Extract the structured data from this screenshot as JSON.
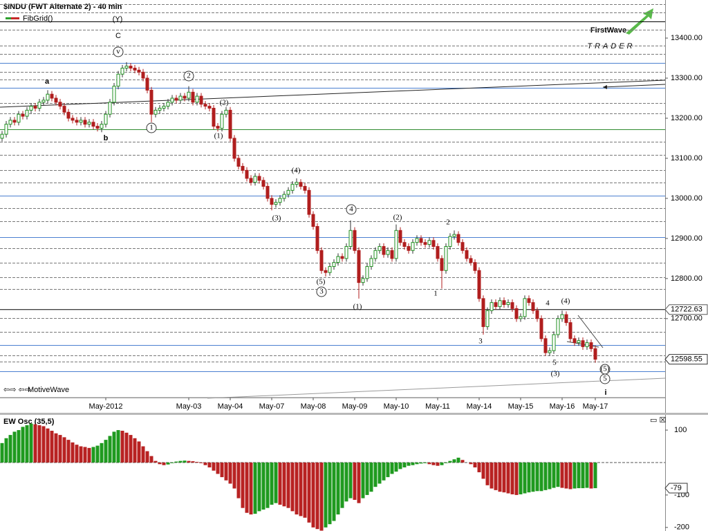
{
  "chart_data": [
    {
      "type": "candlestick",
      "title": "$INDU (FWT Alternate 2) - 40 min",
      "indicator": "FibGrid()",
      "footer": "MotiveWave",
      "logo": "FirstWave",
      "logo_sub": "TRADER",
      "up_color": "#1f8f1f",
      "down_color": "#b01e1e",
      "categories": [
        null,
        null,
        null,
        null,
        null,
        null,
        null,
        null,
        null,
        null,
        null,
        null,
        null,
        null,
        null,
        null,
        null,
        null,
        null,
        null,
        null,
        null,
        null,
        null,
        null,
        "May-2012",
        null,
        null,
        null,
        null,
        null,
        null,
        null,
        null,
        null,
        null,
        null,
        null,
        null,
        null,
        null,
        null,
        null,
        null,
        null,
        "May-03",
        null,
        null,
        null,
        null,
        null,
        null,
        null,
        null,
        null,
        "May-04",
        null,
        null,
        null,
        null,
        null,
        null,
        null,
        null,
        null,
        "May-07",
        null,
        null,
        null,
        null,
        null,
        null,
        null,
        null,
        null,
        "May-08",
        null,
        null,
        null,
        null,
        null,
        null,
        null,
        null,
        null,
        "May-09",
        null,
        null,
        null,
        null,
        null,
        null,
        null,
        null,
        null,
        "May-10",
        null,
        null,
        null,
        null,
        null,
        null,
        null,
        null,
        null,
        "May-11",
        null,
        null,
        null,
        null,
        null,
        null,
        null,
        null,
        null,
        "May-14",
        null,
        null,
        null,
        null,
        null,
        null,
        null,
        null,
        null,
        "May-15",
        null,
        null,
        null,
        null,
        null,
        null,
        null,
        null,
        null,
        "May-16",
        null,
        null,
        null,
        null,
        null,
        null,
        null,
        "May-17"
      ],
      "open": [
        13150,
        13160,
        13185,
        13195,
        13190,
        13210,
        13205,
        13220,
        13230,
        13225,
        13240,
        13245,
        13260,
        13250,
        13240,
        13230,
        13215,
        13200,
        13195,
        13190,
        13195,
        13185,
        13190,
        13180,
        13175,
        13185,
        13210,
        13240,
        13280,
        13310,
        13325,
        13330,
        13325,
        13320,
        13315,
        13300,
        13270,
        13210,
        13220,
        13225,
        13230,
        13240,
        13250,
        13245,
        13255,
        13250,
        13265,
        13240,
        13255,
        13235,
        13230,
        13225,
        13180,
        13175,
        13210,
        13220,
        13150,
        13100,
        13080,
        13070,
        13050,
        13040,
        13055,
        13045,
        13030,
        13000,
        12985,
        12990,
        13000,
        13010,
        13020,
        13035,
        13040,
        13030,
        13020,
        12960,
        12930,
        12870,
        12820,
        12815,
        12830,
        12840,
        12855,
        12850,
        12880,
        12920,
        12870,
        12790,
        12800,
        12830,
        12850,
        12870,
        12880,
        12860,
        12870,
        12850,
        12920,
        12890,
        12880,
        12870,
        12890,
        12900,
        12890,
        12885,
        12895,
        12880,
        12850,
        12820,
        12880,
        12905,
        12910,
        12890,
        12870,
        12850,
        12840,
        12820,
        12750,
        12680,
        12720,
        12740,
        12730,
        12745,
        12735,
        12740,
        12725,
        12700,
        12705,
        12750,
        12740,
        12720,
        12700,
        12650,
        12615,
        12620,
        12660,
        12700,
        12710,
        12690,
        12650,
        12640,
        12645,
        12630,
        12640,
        12625
      ],
      "high": [
        13168,
        13193,
        13203,
        13203,
        13218,
        13218,
        13228,
        13238,
        13238,
        13248,
        13253,
        13270,
        13268,
        13258,
        13248,
        13238,
        13223,
        13208,
        13203,
        13203,
        13203,
        13198,
        13198,
        13188,
        13193,
        13218,
        13248,
        13288,
        13318,
        13333,
        13340,
        13338,
        13333,
        13328,
        13323,
        13308,
        13278,
        13228,
        13233,
        13238,
        13248,
        13258,
        13258,
        13263,
        13263,
        13280,
        13273,
        13263,
        13263,
        13243,
        13238,
        13233,
        13188,
        13218,
        13228,
        13228,
        13158,
        13108,
        13088,
        13078,
        13058,
        13063,
        13063,
        13053,
        13038,
        13008,
        12998,
        13008,
        13018,
        13028,
        13043,
        13050,
        13048,
        13038,
        13028,
        12968,
        12938,
        12878,
        12828,
        12838,
        12848,
        12863,
        12863,
        12888,
        12945,
        12928,
        12878,
        12808,
        12838,
        12858,
        12878,
        12888,
        12888,
        12878,
        12878,
        12935,
        12928,
        12898,
        12888,
        12898,
        12908,
        12908,
        12898,
        12903,
        12903,
        12888,
        12858,
        12888,
        12913,
        12920,
        12918,
        12898,
        12878,
        12858,
        12848,
        12828,
        12758,
        12728,
        12748,
        12748,
        12753,
        12753,
        12748,
        12748,
        12733,
        12713,
        12758,
        12758,
        12748,
        12728,
        12708,
        12658,
        12628,
        12668,
        12708,
        12720,
        12718,
        12698,
        12658,
        12653,
        12653,
        12648,
        12648,
        12633
      ],
      "low": [
        13142,
        13152,
        13177,
        13182,
        13182,
        13197,
        13197,
        13212,
        13217,
        13217,
        13232,
        13237,
        13242,
        13232,
        13222,
        13207,
        13192,
        13187,
        13182,
        13182,
        13177,
        13177,
        13172,
        13167,
        13165,
        13177,
        13202,
        13232,
        13272,
        13302,
        13317,
        13317,
        13312,
        13307,
        13292,
        13262,
        13190,
        13202,
        13212,
        13217,
        13222,
        13232,
        13237,
        13237,
        13242,
        13242,
        13232,
        13232,
        13227,
        13222,
        13217,
        13172,
        13167,
        13167,
        13202,
        13142,
        13092,
        13072,
        13062,
        13042,
        13032,
        13032,
        13037,
        13022,
        12992,
        12970,
        12977,
        12982,
        12992,
        13002,
        13012,
        13027,
        13022,
        13012,
        12952,
        12922,
        12862,
        12812,
        12805,
        12807,
        12822,
        12832,
        12842,
        12842,
        12872,
        12862,
        12750,
        12782,
        12792,
        12822,
        12842,
        12862,
        12852,
        12852,
        12842,
        12842,
        12882,
        12872,
        12862,
        12862,
        12882,
        12882,
        12877,
        12877,
        12872,
        12842,
        12775,
        12812,
        12872,
        12897,
        12882,
        12862,
        12842,
        12832,
        12812,
        12742,
        12660,
        12672,
        12712,
        12722,
        12722,
        12727,
        12727,
        12717,
        12692,
        12692,
        12697,
        12732,
        12712,
        12692,
        12642,
        12607,
        12607,
        12612,
        12652,
        12692,
        12682,
        12642,
        12632,
        12632,
        12622,
        12622,
        12617,
        12590
      ],
      "close": [
        13160,
        13185,
        13195,
        13190,
        13210,
        13205,
        13220,
        13230,
        13225,
        13240,
        13245,
        13260,
        13250,
        13240,
        13230,
        13215,
        13200,
        13195,
        13190,
        13195,
        13185,
        13190,
        13180,
        13175,
        13185,
        13210,
        13240,
        13280,
        13310,
        13325,
        13330,
        13325,
        13320,
        13315,
        13300,
        13270,
        13210,
        13220,
        13225,
        13230,
        13240,
        13250,
        13245,
        13255,
        13250,
        13265,
        13240,
        13255,
        13235,
        13230,
        13225,
        13180,
        13175,
        13210,
        13220,
        13150,
        13100,
        13080,
        13070,
        13050,
        13040,
        13055,
        13045,
        13030,
        13000,
        12985,
        12990,
        13000,
        13010,
        13020,
        13035,
        13040,
        13030,
        13020,
        12960,
        12930,
        12870,
        12820,
        12815,
        12830,
        12840,
        12855,
        12850,
        12880,
        12920,
        12870,
        12790,
        12800,
        12830,
        12850,
        12870,
        12880,
        12860,
        12870,
        12850,
        12920,
        12890,
        12880,
        12870,
        12890,
        12900,
        12890,
        12885,
        12895,
        12880,
        12850,
        12820,
        12880,
        12905,
        12910,
        12890,
        12870,
        12850,
        12840,
        12820,
        12750,
        12680,
        12720,
        12740,
        12730,
        12745,
        12735,
        12740,
        12725,
        12700,
        12705,
        12750,
        12740,
        12720,
        12700,
        12650,
        12615,
        12620,
        12660,
        12700,
        12710,
        12690,
        12650,
        12640,
        12645,
        12630,
        12640,
        12625,
        12598.55
      ],
      "reference_lines": [
        12722.63
      ],
      "annotations": [
        "(Y)",
        "C",
        "v",
        "a",
        "b",
        "2",
        "1",
        "(1)",
        "(2)",
        "(4)",
        "(3)",
        "(5)",
        "3",
        "4",
        "(1)",
        "(2)",
        "2",
        "1",
        "3",
        "4",
        "(4)",
        "5",
        "(3)",
        "(5)",
        "5",
        "i"
      ],
      "ylim": [
        12503,
        13495
      ],
      "yticks": [
        {
          "value": 12700,
          "label": "12700.00"
        },
        {
          "value": 12800,
          "label": "12800.00"
        },
        {
          "value": 12900,
          "label": "12900.00"
        },
        {
          "value": 13000,
          "label": "13000.00"
        },
        {
          "value": 13100,
          "label": "13100.00"
        },
        {
          "value": 13200,
          "label": "13200.00"
        },
        {
          "value": 13300,
          "label": "13300.00"
        },
        {
          "value": 13400,
          "label": "13400.00"
        }
      ]
    },
    {
      "type": "bar",
      "title": "EW Osc (35,5)",
      "up_color": "#1f9a1f",
      "down_color": "#b82222",
      "values": [
        60,
        75,
        85,
        95,
        100,
        110,
        115,
        120,
        118,
        115,
        112,
        105,
        98,
        90,
        85,
        78,
        70,
        62,
        55,
        50,
        48,
        45,
        48,
        52,
        60,
        70,
        82,
        95,
        100,
        98,
        92,
        85,
        75,
        65,
        50,
        35,
        20,
        5,
        -5,
        -8,
        -6,
        -2,
        3,
        5,
        6,
        5,
        4,
        2,
        -2,
        -8,
        -15,
        -25,
        -35,
        -45,
        -55,
        -65,
        -80,
        -110,
        -140,
        -155,
        -160,
        -158,
        -150,
        -145,
        -140,
        -130,
        -125,
        -130,
        -135,
        -140,
        -150,
        -160,
        -165,
        -170,
        -185,
        -200,
        -205,
        -210,
        -200,
        -190,
        -180,
        -160,
        -140,
        -120,
        -110,
        -115,
        -125,
        -110,
        -100,
        -90,
        -75,
        -65,
        -55,
        -45,
        -35,
        -28,
        -20,
        -15,
        -10,
        -8,
        -5,
        -3,
        -2,
        -5,
        -8,
        -10,
        -8,
        -2,
        5,
        10,
        15,
        8,
        0,
        -5,
        -15,
        -30,
        -50,
        -70,
        -80,
        -85,
        -90,
        -92,
        -95,
        -98,
        -100,
        -98,
        -95,
        -92,
        -90,
        -88,
        -88,
        -85,
        -82,
        -78,
        -75,
        -78,
        -80,
        -82,
        -80,
        -79,
        -79,
        -78,
        -80,
        -79
      ],
      "ylim": [
        -211,
        147
      ],
      "yticks": [
        100,
        -100,
        -200
      ]
    }
  ]
}
